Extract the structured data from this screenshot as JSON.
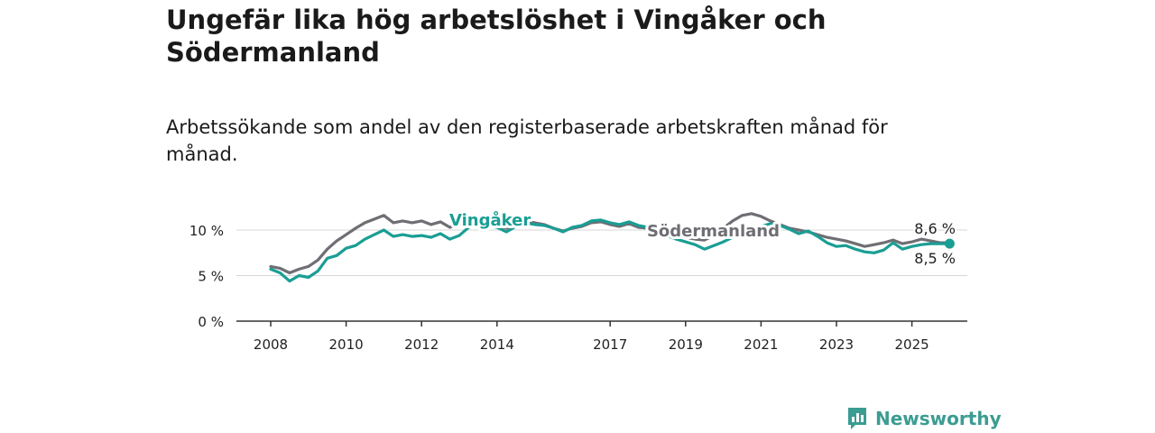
{
  "title": "Ungefär lika hög arbetslöshet i Vingåker och Södermanland",
  "subtitle": "Arbetssökande som andel av den registerbaserade arbetskraften månad för månad.",
  "brand": {
    "name": "Newsworthy",
    "logo": "newsworthy-logo-icon"
  },
  "colors": {
    "vingaker": "#1a9e94",
    "sodermanland": "#6e6e74",
    "grid": "#d7d7d7",
    "axis": "#333333"
  },
  "chart_data": {
    "type": "line",
    "title": "Ungefär lika hög arbetslöshet i Vingåker och Södermanland",
    "subtitle": "Arbetssökande som andel av den registerbaserade arbetskraften månad för månad.",
    "x_ticks": [
      "2008",
      "2010",
      "2012",
      "2014",
      "2017",
      "2019",
      "2021",
      "2023",
      "2025"
    ],
    "y_ticks": [
      "0 %",
      "5 %",
      "10 %"
    ],
    "xlim": [
      2008.0,
      2026.5
    ],
    "ylim": [
      0,
      12
    ],
    "grid": true,
    "series": [
      {
        "name": "Vingåker",
        "color": "#1a9e94",
        "end_label": "8,5 %",
        "points": [
          [
            2008.0,
            5.7
          ],
          [
            2008.25,
            5.3
          ],
          [
            2008.5,
            4.4
          ],
          [
            2008.75,
            5.0
          ],
          [
            2009.0,
            4.8
          ],
          [
            2009.25,
            5.5
          ],
          [
            2009.5,
            6.9
          ],
          [
            2009.75,
            7.2
          ],
          [
            2010.0,
            8.0
          ],
          [
            2010.25,
            8.3
          ],
          [
            2010.5,
            9.0
          ],
          [
            2010.75,
            9.5
          ],
          [
            2011.0,
            10.0
          ],
          [
            2011.25,
            9.3
          ],
          [
            2011.5,
            9.5
          ],
          [
            2011.75,
            9.3
          ],
          [
            2012.0,
            9.4
          ],
          [
            2012.25,
            9.2
          ],
          [
            2012.5,
            9.6
          ],
          [
            2012.75,
            9.0
          ],
          [
            2013.0,
            9.4
          ],
          [
            2013.25,
            10.3
          ],
          [
            2013.5,
            10.6
          ],
          [
            2013.75,
            10.5
          ],
          [
            2014.0,
            10.3
          ],
          [
            2014.25,
            9.8
          ],
          [
            2014.5,
            10.4
          ],
          [
            2014.75,
            10.8
          ],
          [
            2015.0,
            10.6
          ],
          [
            2015.25,
            10.5
          ],
          [
            2015.5,
            10.2
          ],
          [
            2015.75,
            9.8
          ],
          [
            2016.0,
            10.3
          ],
          [
            2016.25,
            10.5
          ],
          [
            2016.5,
            11.0
          ],
          [
            2016.75,
            11.1
          ],
          [
            2017.0,
            10.8
          ],
          [
            2017.25,
            10.6
          ],
          [
            2017.5,
            10.9
          ],
          [
            2017.75,
            10.5
          ],
          [
            2018.0,
            10.3
          ],
          [
            2018.25,
            10.0
          ],
          [
            2018.5,
            9.4
          ],
          [
            2018.75,
            9.0
          ],
          [
            2019.0,
            8.7
          ],
          [
            2019.25,
            8.4
          ],
          [
            2019.5,
            7.9
          ],
          [
            2019.75,
            8.3
          ],
          [
            2020.0,
            8.7
          ],
          [
            2020.25,
            9.2
          ],
          [
            2020.5,
            9.6
          ],
          [
            2020.75,
            10.0
          ],
          [
            2021.0,
            10.4
          ],
          [
            2021.25,
            10.7
          ],
          [
            2021.5,
            10.5
          ],
          [
            2021.75,
            10.1
          ],
          [
            2022.0,
            9.6
          ],
          [
            2022.25,
            9.9
          ],
          [
            2022.5,
            9.3
          ],
          [
            2022.75,
            8.6
          ],
          [
            2023.0,
            8.2
          ],
          [
            2023.25,
            8.3
          ],
          [
            2023.5,
            7.9
          ],
          [
            2023.75,
            7.6
          ],
          [
            2024.0,
            7.5
          ],
          [
            2024.25,
            7.8
          ],
          [
            2024.5,
            8.6
          ],
          [
            2024.75,
            7.9
          ],
          [
            2025.0,
            8.2
          ],
          [
            2025.25,
            8.4
          ],
          [
            2025.5,
            8.5
          ],
          [
            2025.75,
            8.5
          ],
          [
            2026.0,
            8.5
          ]
        ]
      },
      {
        "name": "Södermanland",
        "color": "#6e6e74",
        "end_label": "8,6 %",
        "points": [
          [
            2008.0,
            6.0
          ],
          [
            2008.25,
            5.8
          ],
          [
            2008.5,
            5.3
          ],
          [
            2008.75,
            5.7
          ],
          [
            2009.0,
            6.0
          ],
          [
            2009.25,
            6.7
          ],
          [
            2009.5,
            7.9
          ],
          [
            2009.75,
            8.8
          ],
          [
            2010.0,
            9.5
          ],
          [
            2010.25,
            10.2
          ],
          [
            2010.5,
            10.8
          ],
          [
            2010.75,
            11.2
          ],
          [
            2011.0,
            11.6
          ],
          [
            2011.25,
            10.8
          ],
          [
            2011.5,
            11.0
          ],
          [
            2011.75,
            10.8
          ],
          [
            2012.0,
            11.0
          ],
          [
            2012.25,
            10.6
          ],
          [
            2012.5,
            10.9
          ],
          [
            2012.75,
            10.3
          ],
          [
            2013.0,
            10.6
          ],
          [
            2013.25,
            10.7
          ],
          [
            2013.5,
            11.2
          ],
          [
            2013.75,
            10.8
          ],
          [
            2014.0,
            10.5
          ],
          [
            2014.25,
            10.2
          ],
          [
            2014.5,
            10.6
          ],
          [
            2014.75,
            11.0
          ],
          [
            2015.0,
            10.8
          ],
          [
            2015.25,
            10.6
          ],
          [
            2015.5,
            10.2
          ],
          [
            2015.75,
            9.9
          ],
          [
            2016.0,
            10.2
          ],
          [
            2016.25,
            10.4
          ],
          [
            2016.5,
            10.8
          ],
          [
            2016.75,
            10.9
          ],
          [
            2017.0,
            10.6
          ],
          [
            2017.25,
            10.4
          ],
          [
            2017.5,
            10.7
          ],
          [
            2017.75,
            10.3
          ],
          [
            2018.0,
            10.2
          ],
          [
            2018.25,
            10.0
          ],
          [
            2018.5,
            9.6
          ],
          [
            2018.75,
            9.4
          ],
          [
            2019.0,
            9.2
          ],
          [
            2019.25,
            9.0
          ],
          [
            2019.5,
            8.9
          ],
          [
            2019.75,
            9.4
          ],
          [
            2020.0,
            10.2
          ],
          [
            2020.25,
            11.0
          ],
          [
            2020.5,
            11.6
          ],
          [
            2020.75,
            11.8
          ],
          [
            2021.0,
            11.5
          ],
          [
            2021.25,
            11.0
          ],
          [
            2021.5,
            10.6
          ],
          [
            2021.75,
            10.2
          ],
          [
            2022.0,
            10.0
          ],
          [
            2022.25,
            9.8
          ],
          [
            2022.5,
            9.5
          ],
          [
            2022.75,
            9.2
          ],
          [
            2023.0,
            9.0
          ],
          [
            2023.25,
            8.8
          ],
          [
            2023.5,
            8.5
          ],
          [
            2023.75,
            8.2
          ],
          [
            2024.0,
            8.4
          ],
          [
            2024.25,
            8.6
          ],
          [
            2024.5,
            8.9
          ],
          [
            2024.75,
            8.5
          ],
          [
            2025.0,
            8.7
          ],
          [
            2025.25,
            9.0
          ],
          [
            2025.5,
            8.8
          ],
          [
            2025.75,
            8.6
          ],
          [
            2026.0,
            8.6
          ]
        ]
      }
    ]
  }
}
